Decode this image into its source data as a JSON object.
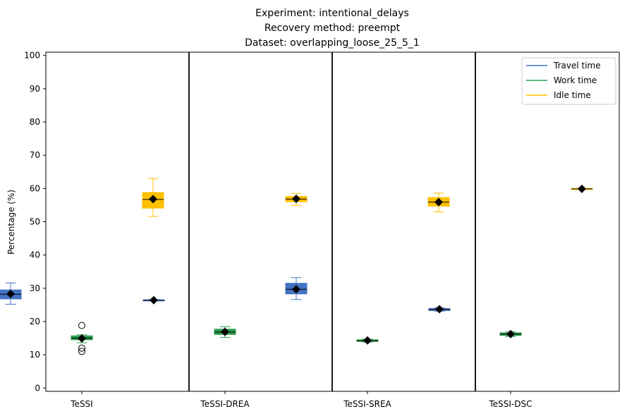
{
  "chart_data": {
    "type": "box",
    "title_lines": [
      "Experiment: intentional_delays",
      "Recovery method: preempt",
      "Dataset: overlapping_loose_25_5_1"
    ],
    "xlabel": "",
    "ylabel": "Percentage (%)",
    "ylim": [
      -1,
      101
    ],
    "yticks": [
      0,
      10,
      20,
      30,
      40,
      50,
      60,
      70,
      80,
      90,
      100
    ],
    "legend_position": "top-right",
    "grid": false,
    "groups": [
      "TeSSI",
      "TeSSI-DREA",
      "TeSSI-SREA",
      "TeSSI-DSC"
    ],
    "series": [
      {
        "name": "Travel time",
        "color": "#4472c4",
        "boxes": [
          {
            "whislo": 25.2,
            "q1": 26.8,
            "med": 28.2,
            "q3": 29.5,
            "whishi": 31.6,
            "mean": 28.3,
            "fliers": []
          },
          {
            "whislo": 26.2,
            "q1": 26.3,
            "med": 26.4,
            "q3": 26.5,
            "whishi": 26.6,
            "mean": 26.4,
            "fliers": []
          },
          {
            "whislo": 26.6,
            "q1": 28.3,
            "med": 29.7,
            "q3": 31.5,
            "whishi": 33.2,
            "mean": 29.7,
            "fliers": []
          },
          {
            "whislo": 23.1,
            "q1": 23.3,
            "med": 23.6,
            "q3": 23.9,
            "whishi": 24.1,
            "mean": 23.7,
            "fliers": []
          }
        ]
      },
      {
        "name": "Work time",
        "color": "#2e9e4f",
        "boxes": [
          {
            "whislo": 13.6,
            "q1": 14.5,
            "med": 15.0,
            "q3": 15.7,
            "whishi": 16.0,
            "mean": 14.9,
            "fliers": [
              18.8,
              12.0,
              11.0
            ]
          },
          {
            "whislo": 15.2,
            "q1": 16.1,
            "med": 16.8,
            "q3": 17.7,
            "whishi": 18.4,
            "mean": 16.9,
            "fliers": []
          },
          {
            "whislo": 13.8,
            "q1": 14.0,
            "med": 14.2,
            "q3": 14.5,
            "whishi": 14.7,
            "mean": 14.3,
            "fliers": []
          },
          {
            "whislo": 15.5,
            "q1": 15.8,
            "med": 16.2,
            "q3": 16.6,
            "whishi": 16.9,
            "mean": 16.2,
            "fliers": []
          }
        ]
      },
      {
        "name": "Idle time",
        "color": "#ffc000",
        "boxes": [
          {
            "whislo": 51.6,
            "q1": 54.1,
            "med": 56.7,
            "q3": 58.8,
            "whishi": 63.0,
            "mean": 56.8,
            "fliers": []
          },
          {
            "whislo": 54.9,
            "q1": 56.0,
            "med": 56.8,
            "q3": 57.6,
            "whishi": 58.5,
            "mean": 56.9,
            "fliers": []
          },
          {
            "whislo": 53.0,
            "q1": 54.7,
            "med": 55.9,
            "q3": 57.3,
            "whishi": 58.6,
            "mean": 55.9,
            "fliers": []
          },
          {
            "whislo": 59.7,
            "q1": 59.8,
            "med": 59.9,
            "q3": 60.0,
            "whishi": 60.1,
            "mean": 59.9,
            "fliers": []
          }
        ]
      }
    ]
  }
}
